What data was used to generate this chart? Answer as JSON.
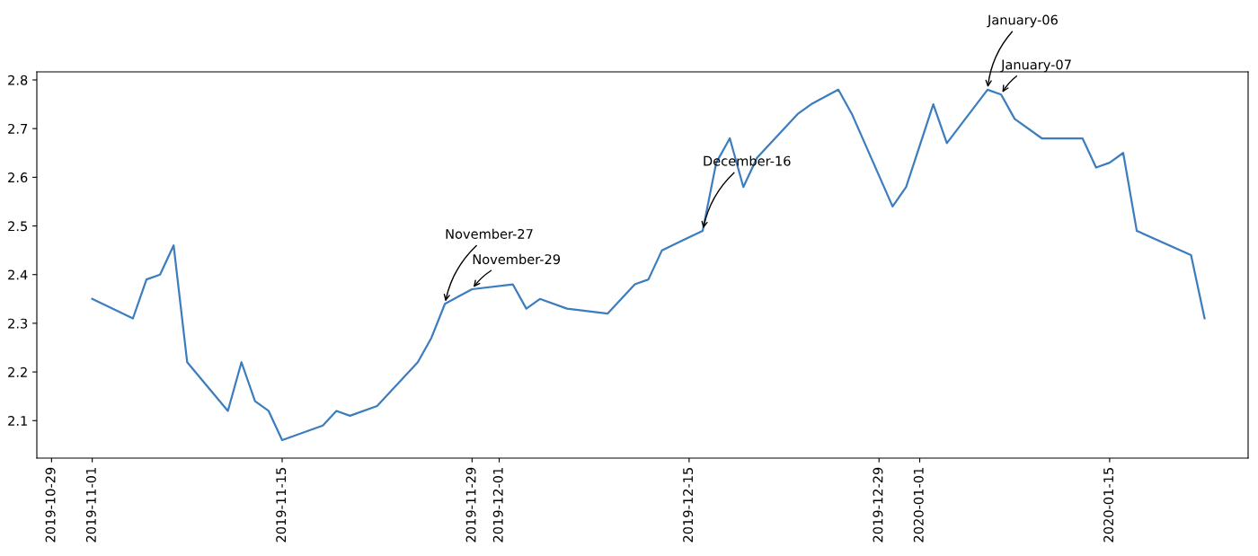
{
  "chart_data": {
    "type": "line",
    "x": [
      "2019-11-01",
      "2019-11-04",
      "2019-11-05",
      "2019-11-06",
      "2019-11-07",
      "2019-11-08",
      "2019-11-11",
      "2019-11-12",
      "2019-11-13",
      "2019-11-14",
      "2019-11-15",
      "2019-11-18",
      "2019-11-19",
      "2019-11-20",
      "2019-11-22",
      "2019-11-25",
      "2019-11-26",
      "2019-11-27",
      "2019-11-29",
      "2019-12-02",
      "2019-12-03",
      "2019-12-04",
      "2019-12-06",
      "2019-12-09",
      "2019-12-11",
      "2019-12-12",
      "2019-12-13",
      "2019-12-16",
      "2019-12-17",
      "2019-12-18",
      "2019-12-19",
      "2019-12-20",
      "2019-12-23",
      "2019-12-24",
      "2019-12-26",
      "2019-12-27",
      "2019-12-30",
      "2019-12-31",
      "2020-01-02",
      "2020-01-03",
      "2020-01-06",
      "2020-01-07",
      "2020-01-08",
      "2020-01-10",
      "2020-01-13",
      "2020-01-14",
      "2020-01-15",
      "2020-01-16",
      "2020-01-17",
      "2020-01-21",
      "2020-01-22"
    ],
    "series": [
      {
        "color": "#3b7dbf",
        "values": [
          2.35,
          2.31,
          2.39,
          2.4,
          2.46,
          2.22,
          2.12,
          2.22,
          2.14,
          2.12,
          2.06,
          2.09,
          2.12,
          2.11,
          2.13,
          2.22,
          2.27,
          2.34,
          2.37,
          2.38,
          2.33,
          2.35,
          2.33,
          2.32,
          2.38,
          2.39,
          2.45,
          2.49,
          2.63,
          2.68,
          2.58,
          2.64,
          2.73,
          2.75,
          2.78,
          2.73,
          2.54,
          2.58,
          2.75,
          2.67,
          2.78,
          2.77,
          2.72,
          2.68,
          2.68,
          2.62,
          2.63,
          2.65,
          2.49,
          2.44,
          2.31
        ]
      }
    ],
    "xlim": [
      "2019-10-27T22:00",
      "2020-01-25T05:00"
    ],
    "xticks": [
      "2019-10-29",
      "2019-11-01",
      "2019-11-15",
      "2019-11-29",
      "2019-12-01",
      "2019-12-15",
      "2019-12-29",
      "2020-01-01",
      "2020-01-15"
    ],
    "ylim": [
      2.023,
      2.8166
    ],
    "yticks": [
      2.1,
      2.2,
      2.3,
      2.4,
      2.5,
      2.6,
      2.7,
      2.8
    ],
    "annotations": [
      {
        "text": "November-27",
        "x": "2019-11-27",
        "y": 2.34
      },
      {
        "text": "November-29",
        "x": "2019-11-29",
        "y": 2.37
      },
      {
        "text": "December-16",
        "x": "2019-12-16",
        "y": 2.49
      },
      {
        "text": "January-06",
        "x": "2020-01-06",
        "y": 2.78
      },
      {
        "text": "January-07",
        "x": "2020-01-07",
        "y": 2.77
      }
    ]
  }
}
